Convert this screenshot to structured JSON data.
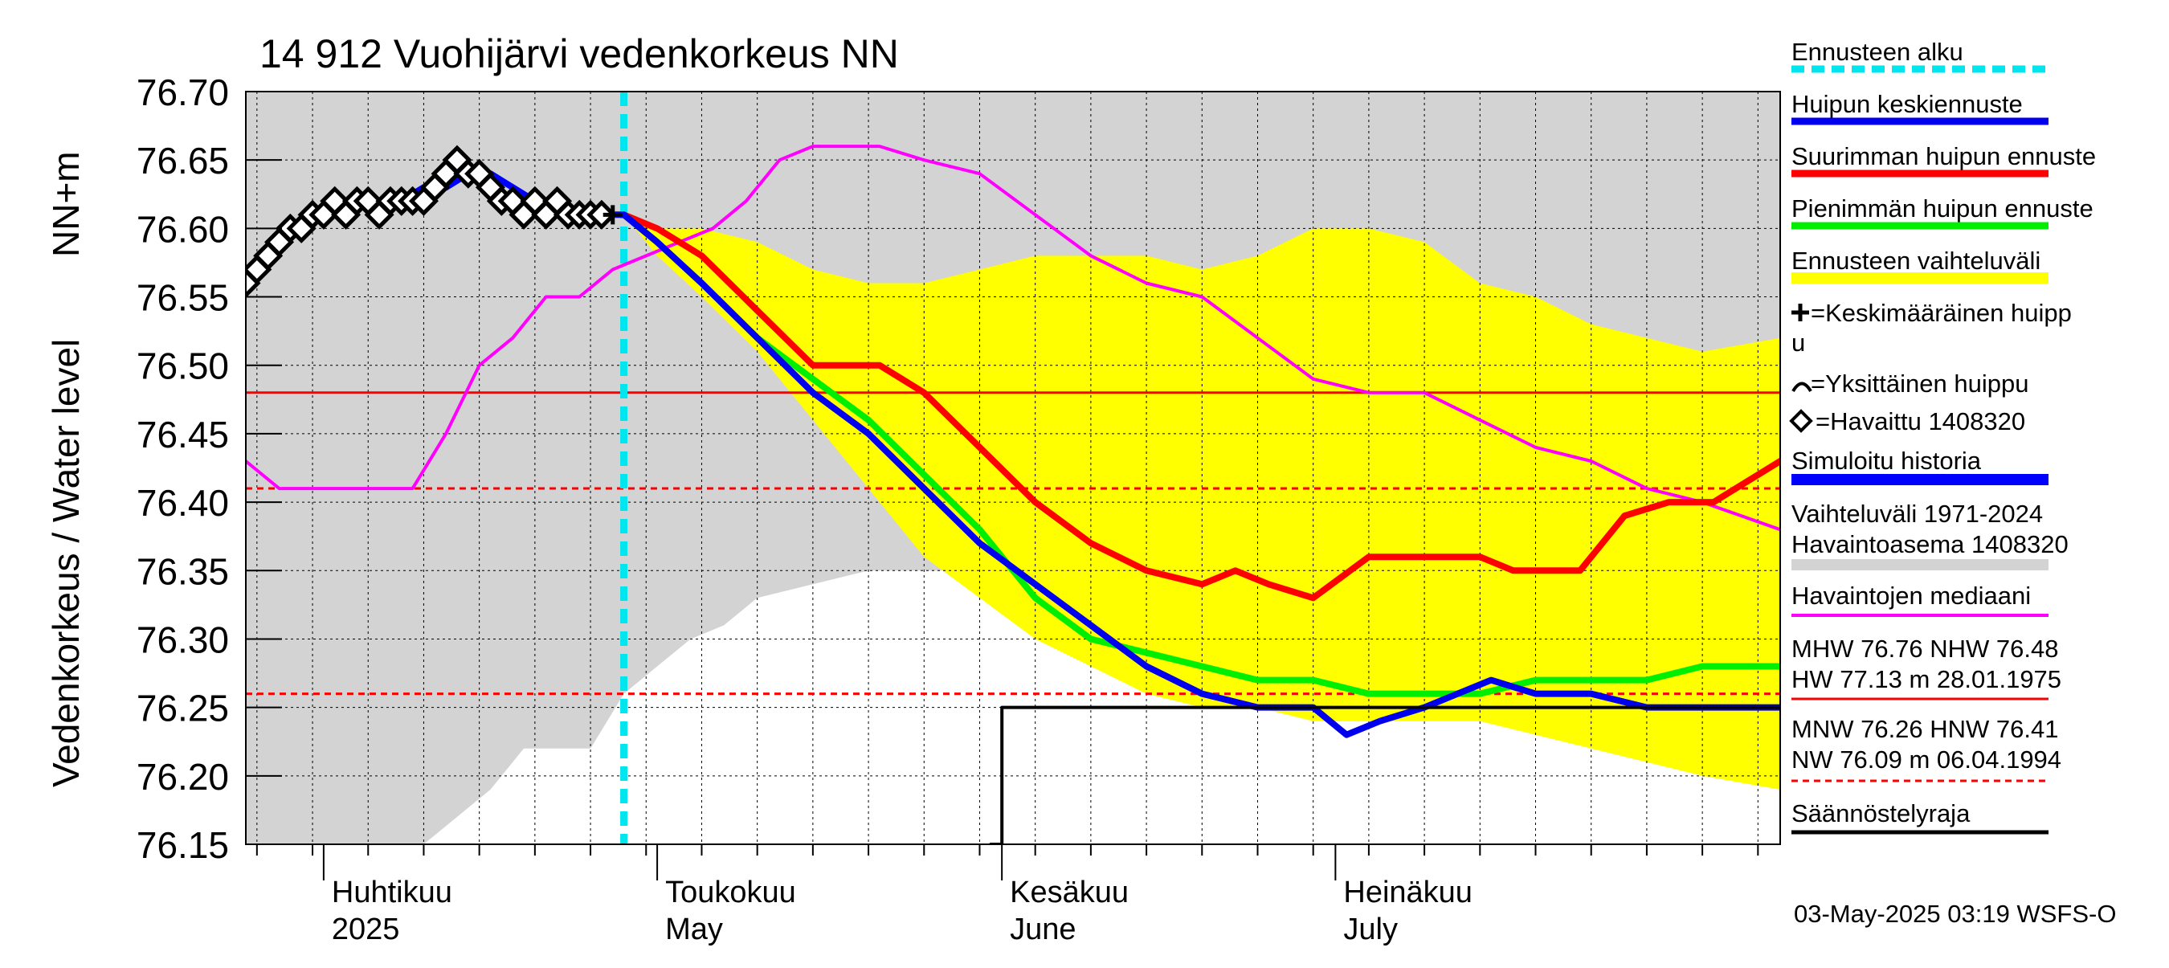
{
  "chart_data": {
    "type": "line",
    "title": "14 912 Vuohijärvi vedenkorkeus NN",
    "ylabel_primary": "Vedenkorkeus / Water level",
    "ylabel_secondary": "NN+m",
    "ylim": [
      76.15,
      76.7
    ],
    "y_ticks": [
      "76.70",
      "76.65",
      "76.60",
      "76.55",
      "76.50",
      "76.45",
      "76.40",
      "76.35",
      "76.30",
      "76.25",
      "76.20",
      "76.15"
    ],
    "x_unit": "day-of-year 2025",
    "xlim": [
      84,
      222
    ],
    "month_ticks": [
      {
        "day": 91,
        "fi": "Huhtikuu",
        "en": "2025"
      },
      {
        "day": 121,
        "fi": "Toukokuu",
        "en": "May"
      },
      {
        "day": 152,
        "fi": "Kesäkuu",
        "en": "June"
      },
      {
        "day": 182,
        "fi": "Heinäkuu",
        "en": "July"
      }
    ],
    "forecast_start_day": 118,
    "reference_lines": {
      "NHW": 76.48,
      "HNW": 76.41,
      "MNW": 76.26,
      "regulation_limit": 76.25
    },
    "series": [
      {
        "name": "Vaihteluväli 1971-2024 Havaintoasema 1408320",
        "kind": "band",
        "color": "#d3d3d3",
        "x": [
          84,
          91,
          95,
          100,
          103,
          106,
          109,
          112,
          115,
          118,
          121,
          124,
          127,
          130,
          135,
          140,
          145,
          150,
          155,
          160,
          165,
          170,
          175,
          180,
          185,
          190,
          195,
          200,
          205,
          210,
          215,
          222
        ],
        "upper": [
          76.7,
          76.7,
          76.7,
          76.7,
          76.7,
          76.7,
          76.7,
          76.7,
          76.7,
          76.7,
          76.7,
          76.7,
          76.7,
          76.7,
          76.7,
          76.7,
          76.7,
          76.7,
          76.7,
          76.7,
          76.7,
          76.7,
          76.7,
          76.7,
          76.7,
          76.7,
          76.7,
          76.7,
          76.7,
          76.7,
          76.7,
          76.7
        ],
        "lower": [
          76.15,
          76.15,
          76.15,
          76.15,
          76.17,
          76.19,
          76.22,
          76.22,
          76.22,
          76.26,
          76.28,
          76.3,
          76.31,
          76.33,
          76.34,
          76.35,
          76.35,
          76.35,
          76.33,
          76.31,
          76.29,
          76.28,
          76.27,
          76.26,
          76.26,
          76.27,
          76.28,
          76.28,
          76.27,
          76.26,
          76.25,
          76.24
        ]
      },
      {
        "name": "Ennusteen vaihteluväli",
        "kind": "band",
        "color": "#ffff00",
        "x": [
          118,
          121,
          125,
          130,
          135,
          140,
          145,
          150,
          155,
          160,
          165,
          170,
          175,
          180,
          185,
          190,
          195,
          200,
          205,
          210,
          215,
          222
        ],
        "upper": [
          76.61,
          76.6,
          76.6,
          76.59,
          76.57,
          76.56,
          76.56,
          76.57,
          76.58,
          76.58,
          76.58,
          76.57,
          76.58,
          76.6,
          76.6,
          76.59,
          76.56,
          76.55,
          76.53,
          76.52,
          76.51,
          76.52
        ],
        "lower": [
          76.61,
          76.58,
          76.55,
          76.51,
          76.46,
          76.41,
          76.36,
          76.33,
          76.3,
          76.28,
          76.26,
          76.25,
          76.25,
          76.24,
          76.24,
          76.24,
          76.24,
          76.23,
          76.22,
          76.21,
          76.2,
          76.19
        ]
      },
      {
        "name": "Havaintojen mediaani",
        "kind": "line",
        "color": "#ff00ff",
        "x": [
          84,
          87,
          90,
          93,
          96,
          99,
          102,
          105,
          108,
          111,
          114,
          117,
          120,
          123,
          126,
          129,
          132,
          135,
          138,
          141,
          145,
          150,
          155,
          160,
          165,
          170,
          175,
          180,
          185,
          190,
          195,
          200,
          205,
          210,
          215,
          222
        ],
        "y": [
          76.43,
          76.41,
          76.41,
          76.41,
          76.41,
          76.41,
          76.45,
          76.5,
          76.52,
          76.55,
          76.55,
          76.57,
          76.58,
          76.59,
          76.6,
          76.62,
          76.65,
          76.66,
          76.66,
          76.66,
          76.65,
          76.64,
          76.61,
          76.58,
          76.56,
          76.55,
          76.52,
          76.49,
          76.48,
          76.48,
          76.46,
          76.44,
          76.43,
          76.41,
          76.4,
          76.38
        ]
      },
      {
        "name": "Suurimman huipun ennuste",
        "kind": "line",
        "color": "#ff0000",
        "x": [
          118,
          121,
          125,
          130,
          135,
          138,
          141,
          145,
          150,
          155,
          160,
          165,
          170,
          173,
          176,
          180,
          185,
          190,
          195,
          198,
          201,
          204,
          208,
          212,
          216,
          222
        ],
        "y": [
          76.61,
          76.6,
          76.58,
          76.54,
          76.5,
          76.5,
          76.5,
          76.48,
          76.44,
          76.4,
          76.37,
          76.35,
          76.34,
          76.35,
          76.34,
          76.33,
          76.36,
          76.36,
          76.36,
          76.35,
          76.35,
          76.35,
          76.39,
          76.4,
          76.4,
          76.43
        ]
      },
      {
        "name": "Pienimmän huipun ennuste",
        "kind": "line",
        "color": "#00ee00",
        "x": [
          118,
          121,
          125,
          130,
          135,
          140,
          145,
          150,
          155,
          160,
          165,
          170,
          175,
          180,
          185,
          190,
          195,
          200,
          205,
          210,
          215,
          222
        ],
        "y": [
          76.61,
          76.59,
          76.56,
          76.52,
          76.49,
          76.46,
          76.42,
          76.38,
          76.33,
          76.3,
          76.29,
          76.28,
          76.27,
          76.27,
          76.26,
          76.26,
          76.26,
          76.27,
          76.27,
          76.27,
          76.28,
          76.28
        ]
      },
      {
        "name": "Huipun keskiennuste",
        "kind": "line",
        "color": "#0000ee",
        "x": [
          118,
          121,
          125,
          130,
          135,
          140,
          145,
          150,
          155,
          160,
          165,
          170,
          175,
          180,
          183,
          186,
          190,
          193,
          196,
          200,
          205,
          210,
          215,
          222
        ],
        "y": [
          76.61,
          76.59,
          76.56,
          76.52,
          76.48,
          76.45,
          76.41,
          76.37,
          76.34,
          76.31,
          76.28,
          76.26,
          76.25,
          76.25,
          76.23,
          76.24,
          76.25,
          76.26,
          76.27,
          76.26,
          76.26,
          76.25,
          76.25,
          76.25
        ]
      },
      {
        "name": "Simuloitu historia",
        "kind": "line",
        "color": "#0000ff",
        "x": [
          84,
          86,
          88,
          90,
          92,
          94,
          96,
          98,
          100,
          102,
          104,
          106,
          108,
          110,
          112,
          114,
          116,
          118
        ],
        "y": [
          76.56,
          76.58,
          76.6,
          76.61,
          76.61,
          76.62,
          76.62,
          76.62,
          76.63,
          76.63,
          76.64,
          76.64,
          76.63,
          76.62,
          76.62,
          76.61,
          76.61,
          76.61
        ]
      },
      {
        "name": "Havaittu 1408320",
        "kind": "markers",
        "color": "#000000",
        "x": [
          84,
          85,
          86,
          87,
          88,
          89,
          90,
          91,
          92,
          93,
          94,
          95,
          96,
          97,
          98,
          99,
          100,
          101,
          102,
          103,
          104,
          105,
          106,
          107,
          108,
          109,
          110,
          111,
          112,
          113,
          114,
          115,
          116
        ],
        "y": [
          76.56,
          76.57,
          76.58,
          76.59,
          76.6,
          76.6,
          76.61,
          76.61,
          76.62,
          76.61,
          76.62,
          76.62,
          76.61,
          76.62,
          76.62,
          76.62,
          76.62,
          76.63,
          76.64,
          76.65,
          76.64,
          76.64,
          76.63,
          76.62,
          76.62,
          76.61,
          76.62,
          76.61,
          76.62,
          76.61,
          76.61,
          76.61,
          76.61
        ]
      },
      {
        "name": "Keskimääräinen huippu",
        "kind": "cross",
        "color": "#000000",
        "x": [
          117
        ],
        "y": [
          76.61
        ]
      },
      {
        "name": "Säännöstelyraja",
        "kind": "step",
        "color": "#000000",
        "x": [
          151,
          152,
          222
        ],
        "y": [
          76.15,
          76.25,
          76.25
        ]
      }
    ]
  },
  "legend": {
    "items": [
      {
        "label": "Ennusteen alku",
        "color": "#00e5ee",
        "style": "dashed"
      },
      {
        "label": "Huipun keskiennuste",
        "color": "#0000ee",
        "style": "solid"
      },
      {
        "label": "Suurimman huipun ennuste",
        "color": "#ff0000",
        "style": "solid"
      },
      {
        "label": "Pienimmän huipun ennuste",
        "color": "#00ee00",
        "style": "solid"
      },
      {
        "label": "Ennusteen vaihteluväli",
        "color": "#ffff00",
        "style": "solid"
      }
    ],
    "mean_peak_line1": "=Keskimääräinen huipp",
    "mean_peak_line2": "u",
    "single_peak": "=Yksittäinen huippu",
    "observed": "=Havaittu 1408320",
    "simulated": "Simuloitu historia",
    "range_line1": "Vaihteluväli 1971-2024",
    "range_line2": " Havaintoasema 1408320",
    "median": "Havaintojen mediaani",
    "mhw_line": "MHW  76.76 NHW  76.48",
    "hw_line": "HW  77.13 m 28.01.1975",
    "mnw_line": "MNW  76.26 HNW  76.41",
    "nw_line": "NW  76.09 m 06.04.1994",
    "regulation": "Säännöstelyraja"
  },
  "footer": {
    "timestamp": "03-May-2025 03:19 WSFS-O"
  },
  "colors": {
    "range_gray": "#d3d3d3",
    "forecast_yellow": "#ffff00",
    "median_magenta": "#ff00ff",
    "max_red": "#ff0000",
    "min_green": "#00ee00",
    "mean_blue": "#0000ee",
    "forecast_cyan": "#00e5ee"
  }
}
